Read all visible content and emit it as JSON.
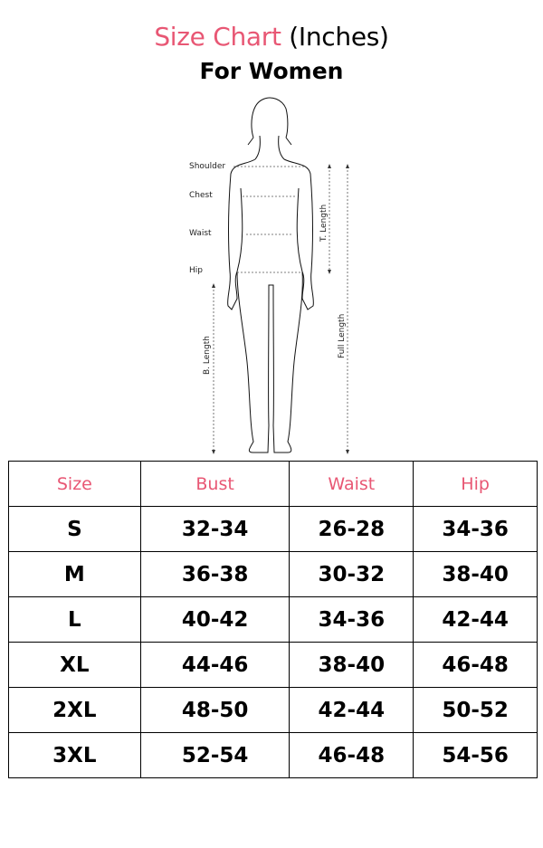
{
  "header": {
    "title_pink": "Size Chart",
    "title_rest": "(Inches)",
    "subtitle": "For Women"
  },
  "figure": {
    "labels": {
      "shoulder": "Shoulder",
      "chest": "Chest",
      "waist": "Waist",
      "hip": "Hip",
      "t_length": "T. Length",
      "full_length": "Full Length",
      "b_length": "B. Length"
    }
  },
  "colors": {
    "accent": "#E85774"
  },
  "table": {
    "headers": [
      "Size",
      "Bust",
      "Waist",
      "Hip"
    ],
    "rows": [
      [
        "S",
        "32-34",
        "26-28",
        "34-36"
      ],
      [
        "M",
        "36-38",
        "30-32",
        "38-40"
      ],
      [
        "L",
        "40-42",
        "34-36",
        "42-44"
      ],
      [
        "XL",
        "44-46",
        "38-40",
        "46-48"
      ],
      [
        "2XL",
        "48-50",
        "42-44",
        "50-52"
      ],
      [
        "3XL",
        "52-54",
        "46-48",
        "54-56"
      ]
    ]
  }
}
